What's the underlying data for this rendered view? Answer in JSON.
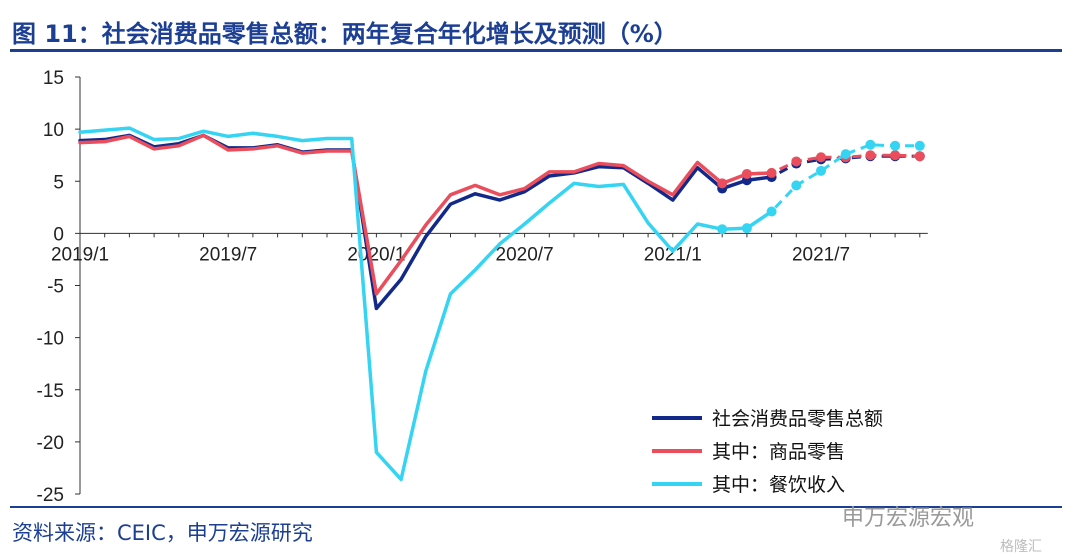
{
  "header": {
    "title": "图 11：社会消费品零售总额：两年复合年化增长及预测（%）"
  },
  "footer": {
    "source": "资料来源：CEIC，申万宏源研究"
  },
  "watermark": {
    "account": "申万宏源宏观",
    "site": "格隆汇"
  },
  "colors": {
    "total": "#12298a",
    "goods": "#ea4d5c",
    "catering": "#35d4f2",
    "title": "#1c3f94"
  },
  "chart_data": {
    "type": "line",
    "ylim": [
      -25,
      15
    ],
    "yticks": [
      15,
      10,
      5,
      0,
      -5,
      -10,
      -15,
      -20,
      -25
    ],
    "xtick_labels": [
      {
        "index": 0,
        "label": "2019/1"
      },
      {
        "index": 6,
        "label": "2019/7"
      },
      {
        "index": 12,
        "label": "2020/1"
      },
      {
        "index": 18,
        "label": "2020/7"
      },
      {
        "index": 24,
        "label": "2021/1"
      },
      {
        "index": 30,
        "label": "2021/7"
      }
    ],
    "forecast_start_index": 28,
    "series": [
      {
        "name": "社会消费品零售总额",
        "color": "#12298a",
        "values": [
          8.9,
          9.0,
          9.4,
          8.3,
          8.6,
          9.4,
          8.2,
          8.2,
          8.5,
          7.8,
          8.0,
          8.0,
          -7.2,
          -4.4,
          -0.3,
          2.8,
          3.8,
          3.2,
          4.0,
          5.5,
          5.8,
          6.4,
          6.3,
          4.8,
          3.2,
          6.3,
          4.3,
          5.1,
          5.4,
          6.7,
          7.1,
          7.2,
          7.4,
          7.4,
          7.4
        ]
      },
      {
        "name": "其中：商品零售",
        "color": "#ea4d5c",
        "values": [
          8.7,
          8.8,
          9.3,
          8.1,
          8.4,
          9.4,
          8.0,
          8.1,
          8.4,
          7.7,
          7.9,
          7.9,
          -5.8,
          -2.6,
          0.8,
          3.7,
          4.6,
          3.7,
          4.3,
          5.9,
          5.9,
          6.7,
          6.5,
          5.0,
          3.7,
          6.8,
          4.8,
          5.7,
          5.8,
          6.9,
          7.3,
          7.3,
          7.5,
          7.5,
          7.4
        ]
      },
      {
        "name": "其中：餐饮收入",
        "color": "#35d4f2",
        "values": [
          9.7,
          9.9,
          10.1,
          9.0,
          9.1,
          9.8,
          9.3,
          9.6,
          9.3,
          8.9,
          9.1,
          9.1,
          -21.0,
          -23.6,
          -13.2,
          -5.8,
          -3.5,
          -1.0,
          0.9,
          2.9,
          4.8,
          4.5,
          4.7,
          1.0,
          -1.7,
          0.9,
          0.4,
          0.5,
          2.1,
          4.6,
          6.0,
          7.6,
          8.5,
          8.4,
          8.4
        ]
      }
    ]
  }
}
